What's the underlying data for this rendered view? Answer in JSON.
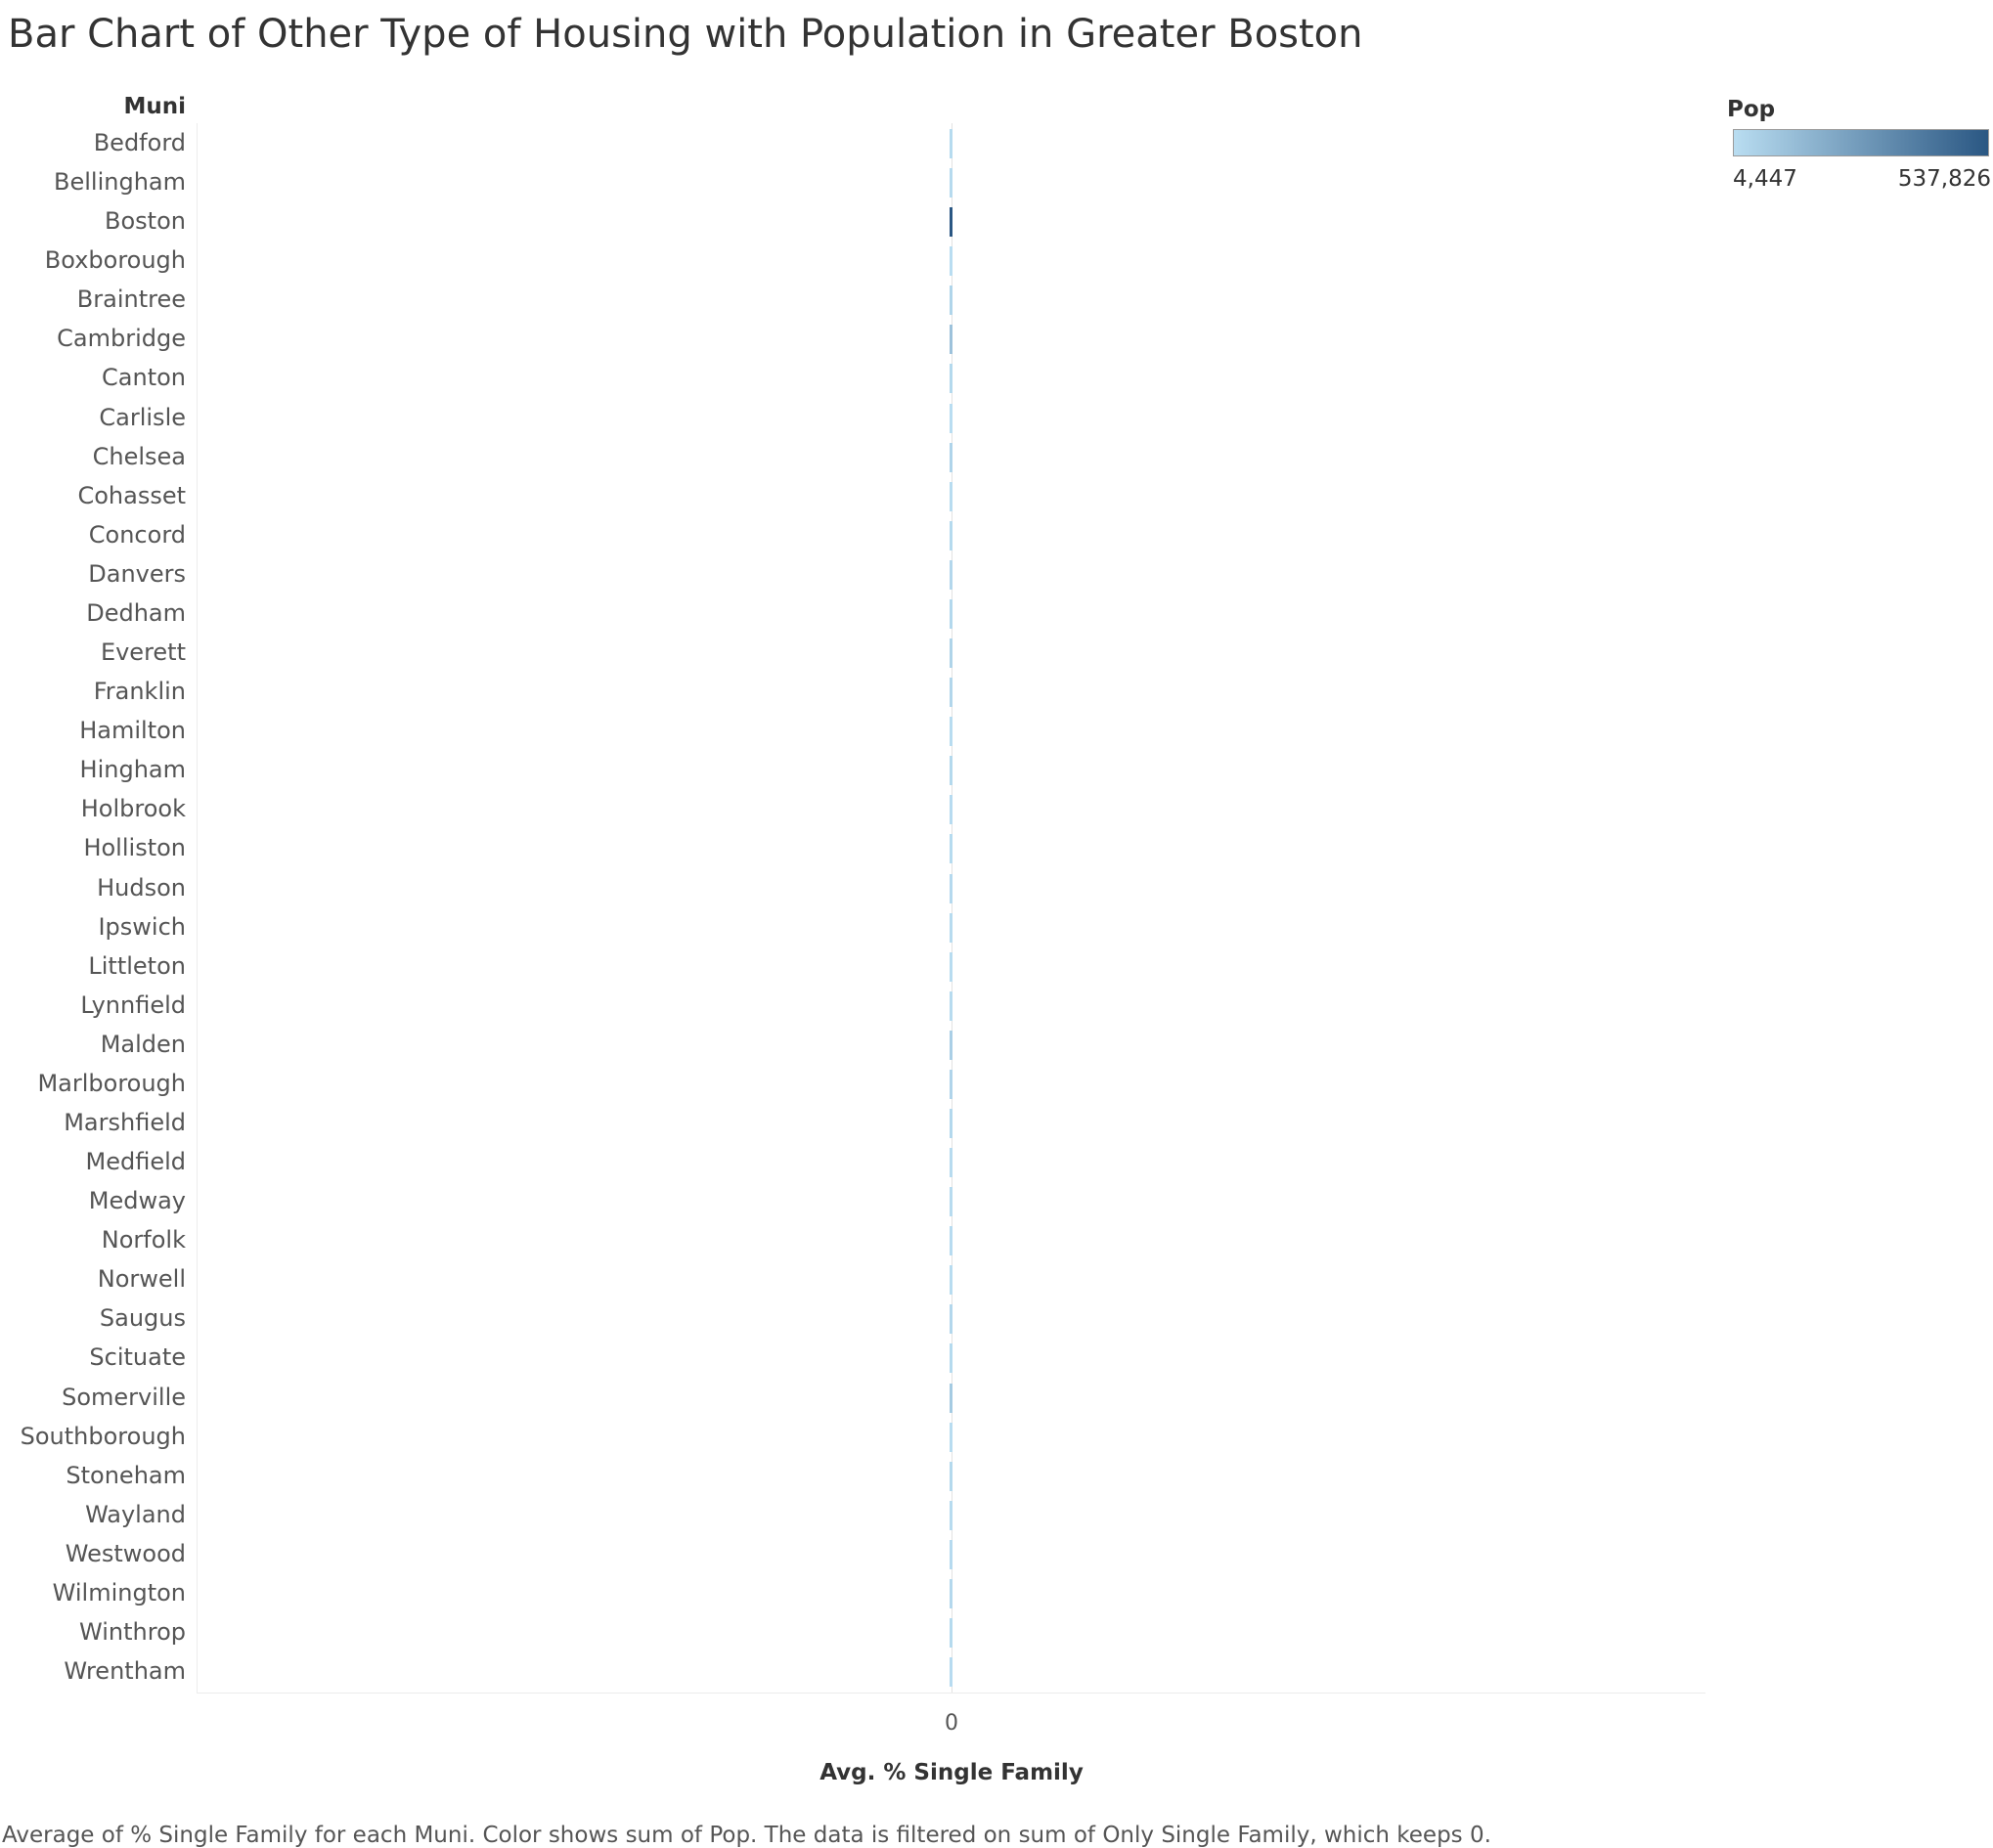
{
  "chart_data": {
    "type": "bar",
    "orientation": "horizontal",
    "title": "Bar Chart of Other Type of Housing with Population in Greater Boston",
    "category_header": "Muni",
    "xlabel": "Avg. % Single Family",
    "x_ticks": [
      "0"
    ],
    "xlim": [
      -1,
      1
    ],
    "grid": false,
    "legend": {
      "title": "Pop",
      "placement": "top-right",
      "min_label": "4,447",
      "max_label": "537,826",
      "min_value": 4447,
      "max_value": 537826,
      "color_low": "#b9ddf1",
      "color_high": "#2a5783"
    },
    "categories": [
      "Bedford",
      "Bellingham",
      "Boston",
      "Boxborough",
      "Braintree",
      "Cambridge",
      "Canton",
      "Carlisle",
      "Chelsea",
      "Cohasset",
      "Concord",
      "Danvers",
      "Dedham",
      "Everett",
      "Franklin",
      "Hamilton",
      "Hingham",
      "Holbrook",
      "Holliston",
      "Hudson",
      "Ipswich",
      "Littleton",
      "Lynnfield",
      "Malden",
      "Marlborough",
      "Marshfield",
      "Medfield",
      "Medway",
      "Norfolk",
      "Norwell",
      "Saugus",
      "Scituate",
      "Somerville",
      "Southborough",
      "Stoneham",
      "Wayland",
      "Westwood",
      "Wilmington",
      "Winthrop",
      "Wrentham"
    ],
    "values": [
      0,
      0,
      0,
      0,
      0,
      0,
      0,
      0,
      0,
      0,
      0,
      0,
      0,
      0,
      0,
      0,
      0,
      0,
      0,
      0,
      0,
      0,
      0,
      0,
      0,
      0,
      0,
      0,
      0,
      0,
      0,
      0,
      0,
      0,
      0,
      0,
      0,
      0,
      0,
      0
    ],
    "color_values": [
      14000,
      17000,
      537826,
      5000,
      37000,
      110000,
      22000,
      5000,
      40000,
      8000,
      18000,
      27000,
      25000,
      42000,
      32000,
      8000,
      22000,
      11000,
      14000,
      19000,
      13000,
      9000,
      12000,
      60000,
      39000,
      25000,
      12000,
      13000,
      11000,
      10000,
      27000,
      18000,
      78000,
      10000,
      22000,
      13000,
      15000,
      23000,
      18000,
      11000
    ],
    "footnote": "Average of % Single Family for each Muni.  Color shows sum of Pop. The data is filtered on sum of Only Single Family, which keeps 0."
  }
}
